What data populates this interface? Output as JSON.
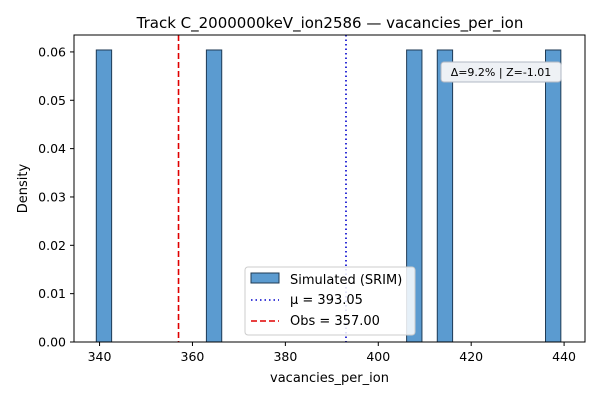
{
  "chart_data": {
    "type": "bar",
    "title": "Track C_2000000keV_ion2586 — vacancies_per_ion",
    "xlabel": "vacancies_per_ion",
    "ylabel": "Density",
    "xlim": [
      334.5,
      444.5
    ],
    "ylim": [
      0,
      0.0635
    ],
    "xticks": [
      340,
      360,
      380,
      400,
      420,
      440
    ],
    "yticks": [
      0.0,
      0.01,
      0.02,
      0.03,
      0.04,
      0.05,
      0.06
    ],
    "ytick_labels": [
      "0.00",
      "0.01",
      "0.02",
      "0.03",
      "0.04",
      "0.05",
      "0.06"
    ],
    "bin_width": 3.3,
    "series": [
      {
        "name": "Simulated (SRIM)",
        "color": "#5b9bd0",
        "edge_color": "#1f3b55",
        "bins": [
          {
            "x0": 339.3,
            "x1": 342.6,
            "density": 0.0604
          },
          {
            "x0": 363.0,
            "x1": 366.3,
            "density": 0.0604
          },
          {
            "x0": 406.1,
            "x1": 409.4,
            "density": 0.0604
          },
          {
            "x0": 412.7,
            "x1": 416.0,
            "density": 0.0604
          },
          {
            "x0": 436.0,
            "x1": 439.3,
            "density": 0.0604
          }
        ]
      }
    ],
    "reference_lines": [
      {
        "name": "μ = 393.05",
        "x": 393.05,
        "color": "#0000cc",
        "style": "dotted"
      },
      {
        "name": "Obs = 357.00",
        "x": 357.0,
        "color": "#e00000",
        "style": "dashed"
      }
    ],
    "annotation": "Δ=9.2% | Z=-1.01",
    "legend_position": "lower-center",
    "grid": false
  }
}
